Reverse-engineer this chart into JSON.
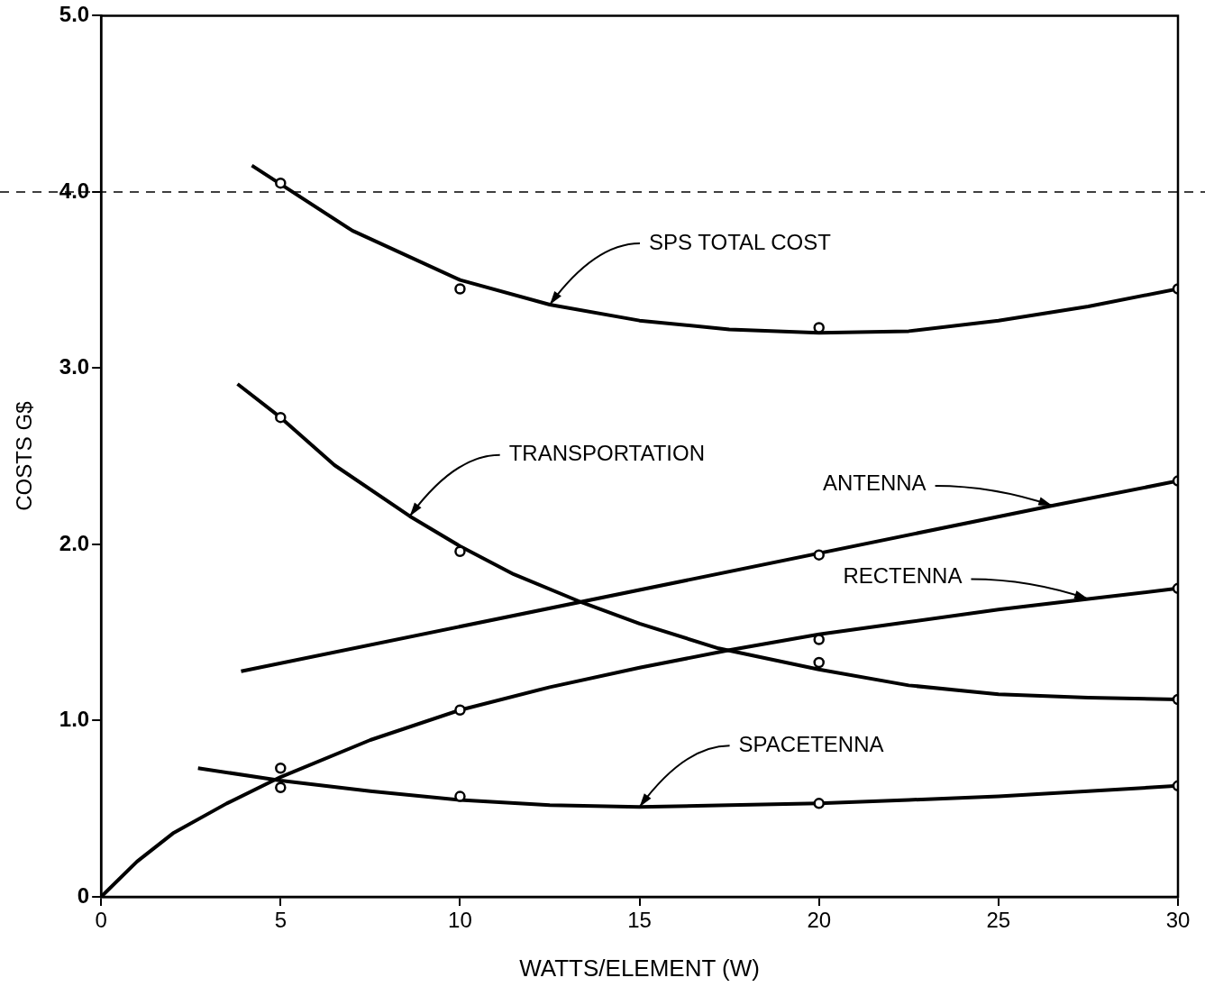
{
  "chart_data": {
    "type": "line",
    "xlabel": "WATTS/ELEMENT (W)",
    "ylabel": "COSTS G$",
    "xlim": [
      0,
      30
    ],
    "ylim": [
      0,
      5
    ],
    "xticks": [
      0,
      5,
      10,
      15,
      20,
      25,
      30
    ],
    "yticks": [
      0,
      {
        "value": 1,
        "label": "1.0"
      },
      {
        "value": 2,
        "label": "2.0"
      },
      {
        "value": 3,
        "label": "3.0"
      },
      {
        "value": 4,
        "label": "4.0"
      },
      {
        "value": 5,
        "label": "5.0"
      }
    ],
    "grid": false,
    "legend": false,
    "marker": "none",
    "line_style": "solid",
    "series": [
      {
        "type": "line",
        "color": "#000000",
        "x": [
          4.2,
          7,
          10,
          12.5,
          15,
          17.5,
          20,
          22.5,
          25,
          27.5,
          30
        ],
        "values": [
          4.15,
          3.78,
          3.5,
          3.36,
          3.27,
          3.22,
          3.2,
          3.21,
          3.27,
          3.35,
          3.45
        ]
      },
      {
        "type": "line",
        "color": "#000000",
        "x": [
          3.8,
          5,
          6.5,
          8.6,
          10,
          11.5,
          13.4,
          15,
          17.2,
          20,
          22.5,
          25,
          27.5,
          30
        ],
        "values": [
          2.91,
          2.72,
          2.45,
          2.16,
          1.99,
          1.83,
          1.67,
          1.55,
          1.41,
          1.29,
          1.2,
          1.15,
          1.13,
          1.12
        ]
      },
      {
        "type": "line",
        "color": "#000000",
        "x": [
          3.9,
          26.5,
          30
        ],
        "values": [
          1.28,
          2.22,
          2.36
        ]
      },
      {
        "type": "line",
        "color": "#000000",
        "x": [
          0,
          1,
          2,
          3.5,
          5,
          7.5,
          10,
          12.5,
          15,
          17.5,
          20,
          22.5,
          25,
          27.5,
          30
        ],
        "values": [
          0,
          0.2,
          0.36,
          0.53,
          0.68,
          0.89,
          1.06,
          1.19,
          1.3,
          1.4,
          1.49,
          1.56,
          1.63,
          1.69,
          1.75
        ]
      },
      {
        "type": "line",
        "color": "#000000",
        "x": [
          2.7,
          5,
          7.5,
          10,
          12.5,
          15,
          17.5,
          20,
          22.5,
          25,
          27.5,
          30
        ],
        "values": [
          0.73,
          0.66,
          0.6,
          0.55,
          0.52,
          0.51,
          0.52,
          0.53,
          0.55,
          0.57,
          0.6,
          0.63
        ]
      },
      {
        "type": "scatter",
        "marker": "circle",
        "color": "#000000",
        "x": [
          5,
          10,
          20,
          30
        ],
        "values": [
          4.05,
          3.45,
          3.23,
          3.45
        ]
      },
      {
        "type": "scatter",
        "marker": "circle",
        "color": "#000000",
        "x": [
          5,
          10,
          20,
          30
        ],
        "values": [
          2.72,
          1.96,
          1.33,
          1.12
        ]
      },
      {
        "type": "scatter",
        "marker": "circle",
        "color": "#000000",
        "x": [
          20,
          30
        ],
        "values": [
          1.94,
          2.36
        ]
      },
      {
        "type": "scatter",
        "marker": "circle",
        "color": "#000000",
        "x": [
          5,
          10,
          20,
          30
        ],
        "values": [
          0.73,
          1.06,
          1.46,
          1.75
        ]
      },
      {
        "type": "scatter",
        "marker": "circle",
        "color": "#000000",
        "x": [
          5,
          10,
          20,
          30
        ],
        "values": [
          0.62,
          0.57,
          0.53,
          0.63
        ]
      }
    ],
    "ref_lines": [
      {
        "axis": "y",
        "value": 4,
        "color": "#000000",
        "line_style": "dashed"
      }
    ],
    "annotations": [
      {
        "text": "SPS TOTAL COST",
        "x": 12.5,
        "y": 3.36
      },
      {
        "text": "TRANSPORTATION",
        "x": 8.6,
        "y": 2.16
      },
      {
        "text": "ANTENNA",
        "x": 26.5,
        "y": 2.22
      },
      {
        "text": "RECTENNA",
        "x": 27.5,
        "y": 1.69
      },
      {
        "text": "SPACETENNA",
        "x": 15,
        "y": 0.51
      }
    ]
  }
}
